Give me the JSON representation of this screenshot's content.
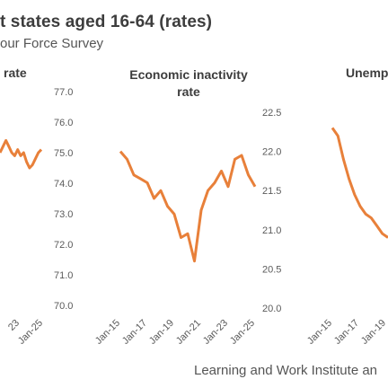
{
  "header": {
    "title": "t states aged 16-64 (rates)",
    "subtitle": "our Force Survey"
  },
  "footer": {
    "source": "Learning and Work Institute an"
  },
  "colors": {
    "series": "#e8803a",
    "text": "#555555",
    "title": "#3d3d3d"
  },
  "chart_data": [
    {
      "type": "line",
      "title": "rate",
      "x_ticks": [
        "23",
        "Jan-25"
      ],
      "y_ticks": [
        "77.0",
        "76.0",
        "75.0",
        "74.0",
        "73.0",
        "72.0",
        "71.0",
        "70.0"
      ],
      "ylim": [
        70,
        77
      ],
      "x": [
        "Sep-22",
        "Nov-22",
        "Jan-23",
        "Mar-23",
        "May-23",
        "Jul-23",
        "Sep-23",
        "Nov-23",
        "Jan-24",
        "Mar-24",
        "May-24",
        "Jul-24",
        "Sep-24",
        "Nov-24",
        "Jan-25"
      ],
      "values": [
        75.0,
        75.2,
        75.4,
        75.2,
        75.0,
        74.9,
        75.1,
        74.9,
        75.0,
        74.7,
        74.5,
        74.6,
        74.8,
        75.0,
        75.1
      ]
    },
    {
      "type": "line",
      "title": "Economic inactivity rate",
      "x_ticks": [
        "Jan-15",
        "Jan-17",
        "Jan-19",
        "Jan-21",
        "Jan-23",
        "Jan-25"
      ],
      "y_ticks": [
        "22.5",
        "22.0",
        "21.5",
        "21.0",
        "20.5",
        "20.0"
      ],
      "ylim": [
        20,
        22.5
      ],
      "x": [
        "Jan-15",
        "Jul-15",
        "Jan-16",
        "Jul-16",
        "Jan-17",
        "Jul-17",
        "Jan-18",
        "Jul-18",
        "Jan-19",
        "Jul-19",
        "Jan-20",
        "Jul-20",
        "Jan-21",
        "Jul-21",
        "Jan-22",
        "Jul-22",
        "Jan-23",
        "Jul-23",
        "Jan-24",
        "Jul-24",
        "Jan-25"
      ],
      "values": [
        22.0,
        21.9,
        21.7,
        21.65,
        21.6,
        21.4,
        21.5,
        21.3,
        21.2,
        20.9,
        20.95,
        20.6,
        21.25,
        21.5,
        21.6,
        21.75,
        21.55,
        21.9,
        21.95,
        21.7,
        21.55
      ]
    },
    {
      "type": "line",
      "title": "Unemp",
      "x_ticks": [
        "Jan-15",
        "Jan-17",
        "Jan-19"
      ],
      "y_ticks": [],
      "ylim": [
        20,
        22.5
      ],
      "x": [
        "Jan-15",
        "Jul-15",
        "Jan-16",
        "Jul-16",
        "Jan-17",
        "Jul-17",
        "Jan-18",
        "Jul-18",
        "Jan-19",
        "Jul-19",
        "Jan-20"
      ],
      "values": [
        22.3,
        22.2,
        21.9,
        21.65,
        21.45,
        21.3,
        21.2,
        21.15,
        21.05,
        20.95,
        20.9
      ]
    }
  ]
}
